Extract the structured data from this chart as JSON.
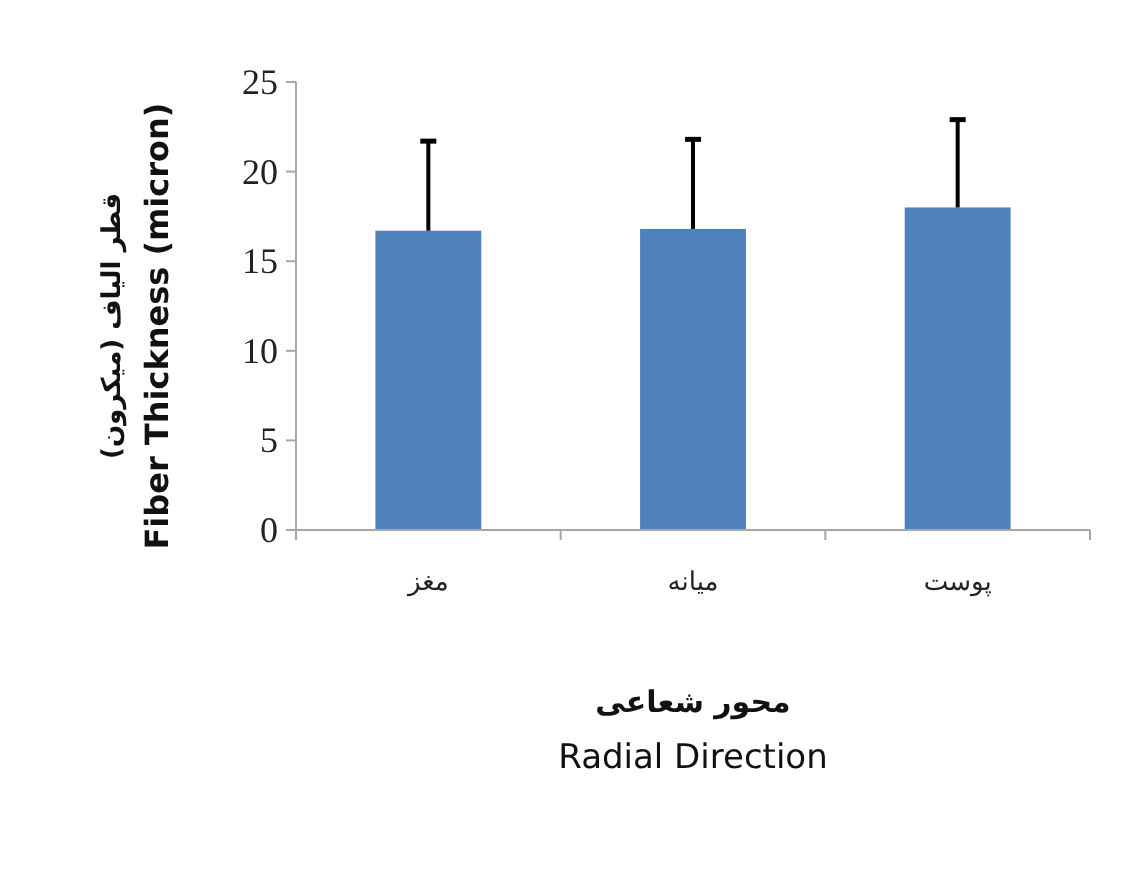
{
  "chart_data": {
    "type": "bar",
    "categories": [
      "مغز",
      "میانه",
      "پوست"
    ],
    "values": [
      16.7,
      16.8,
      18.0
    ],
    "errors": [
      [
        16.7,
        21.7
      ],
      [
        16.8,
        21.8
      ],
      [
        18.0,
        22.9
      ]
    ],
    "color": "#4f81bd",
    "ylim": [
      0,
      25
    ],
    "yticks": [
      0,
      5,
      10,
      15,
      20,
      25
    ],
    "xlabel": "محور شعاعی\nRadial Direction",
    "ylabel": "قطر الیاف (میکرون)\nFiber Thickness (micron)"
  }
}
